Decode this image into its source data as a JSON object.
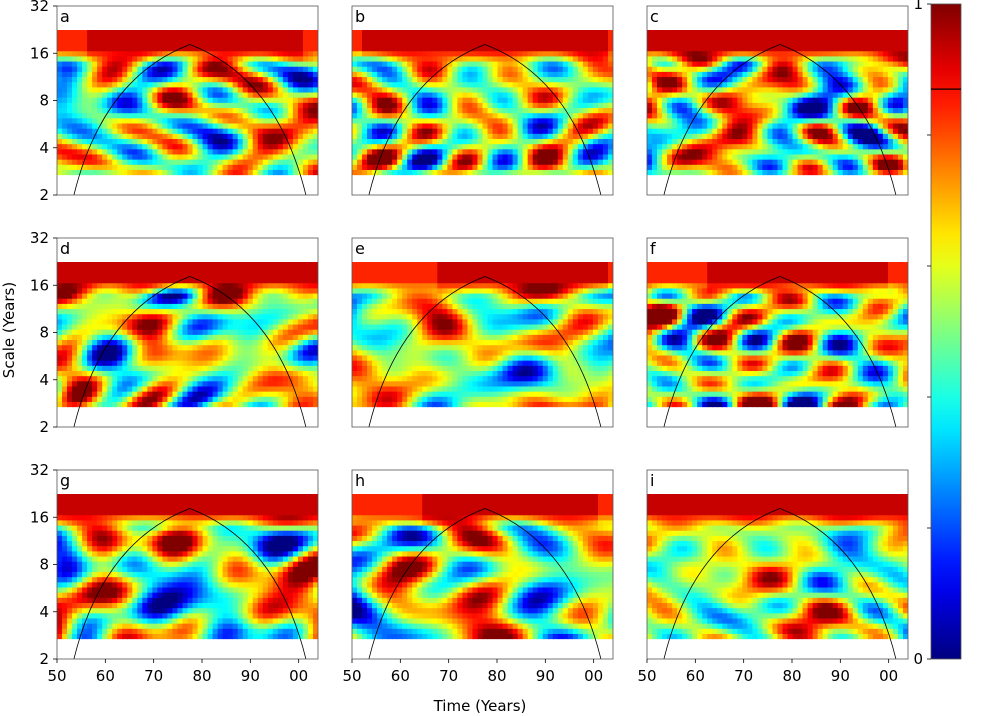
{
  "chart_data": {
    "type": "heatmap",
    "description_kind": "wavelet coherence panels",
    "xlabel": "Time (Years)",
    "ylabel": "Scale (Years)",
    "x_ticks": [
      "50",
      "60",
      "70",
      "80",
      "90",
      "00"
    ],
    "x_tick_values": [
      1950,
      1960,
      1970,
      1980,
      1990,
      2000
    ],
    "xlim": [
      1950,
      2004
    ],
    "y_ticks": [
      "2",
      "4",
      "8",
      "16",
      "32"
    ],
    "y_tick_values": [
      2,
      4,
      8,
      16,
      32
    ],
    "ylim": [
      2,
      32
    ],
    "y_scale": "log2",
    "data_scale_range": [
      2.7,
      22.5
    ],
    "cone_of_influence": {
      "apex_year": 1977.5,
      "apex_scale": 18.2,
      "base_left": 1953.5,
      "base_right": 2001.5
    },
    "colorbar": {
      "range": [
        0,
        1
      ],
      "tick_labels": [
        "0",
        "",
        "",
        "",
        "",
        "1"
      ],
      "tick_values": [
        0,
        0.2,
        0.4,
        0.6,
        0.8,
        1.0
      ],
      "significance_line": 0.87,
      "colormap": "jet"
    },
    "panels": [
      {
        "label": "a",
        "seed": 11,
        "band_x": [
          1956,
          2001
        ]
      },
      {
        "label": "b",
        "seed": 23,
        "band_x": [
          1952,
          2003
        ]
      },
      {
        "label": "c",
        "seed": 37,
        "band_x": [
          1950,
          2004
        ]
      },
      {
        "label": "d",
        "seed": 41,
        "band_x": [
          1950,
          2004
        ]
      },
      {
        "label": "e",
        "seed": 53,
        "band_x": [
          1968,
          2003
        ]
      },
      {
        "label": "f",
        "seed": 67,
        "band_x": [
          1962,
          2000
        ]
      },
      {
        "label": "g",
        "seed": 71,
        "band_x": [
          1950,
          2004
        ]
      },
      {
        "label": "h",
        "seed": 83,
        "band_x": [
          1965,
          2001
        ]
      },
      {
        "label": "i",
        "seed": 97,
        "band_x": [
          1950,
          2004
        ]
      }
    ]
  }
}
